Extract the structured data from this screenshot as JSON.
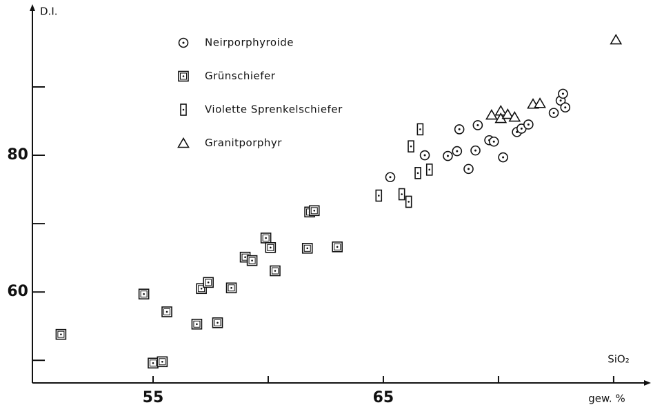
{
  "chart_data": {
    "type": "scatter",
    "y_label": "D.I.",
    "x_label": "SiO₂",
    "x_unit": "gew. %",
    "xlim": [
      49.76,
      76.5
    ],
    "ylim": [
      46.7,
      101.2
    ],
    "xticks": [
      55,
      65
    ],
    "xminorticks": [
      60,
      70,
      75
    ],
    "yticks": [
      60,
      80
    ],
    "yminorticks": [
      50,
      70,
      90
    ],
    "legend": "upper-left",
    "series": [
      {
        "name": "Neirporphyroide",
        "marker": "circle-dot",
        "color": "#111111",
        "x": [
          65.3,
          66.8,
          67.8,
          68.2,
          68.3,
          68.7,
          69.0,
          69.1,
          69.6,
          69.8,
          70.2,
          70.8,
          71.0,
          71.3,
          72.4,
          72.7,
          72.8,
          72.9
        ],
        "values": [
          76.8,
          80.0,
          79.9,
          80.6,
          83.8,
          78.0,
          80.7,
          84.4,
          82.2,
          82.0,
          79.7,
          83.4,
          83.9,
          84.5,
          86.2,
          88.0,
          89.0,
          87.0
        ]
      },
      {
        "name": "Grünschiefer",
        "marker": "square-dot",
        "color": "#111111",
        "x": [
          51.0,
          54.6,
          55.6,
          55.0,
          55.4,
          56.9,
          57.8,
          57.1,
          57.4,
          58.4,
          59.0,
          59.3,
          59.9,
          60.1,
          60.3,
          61.7,
          61.8,
          62.0,
          63.0
        ],
        "values": [
          53.8,
          59.7,
          57.1,
          49.6,
          49.8,
          55.3,
          55.5,
          60.5,
          61.4,
          60.6,
          65.1,
          64.6,
          67.9,
          66.5,
          63.1,
          66.4,
          71.7,
          71.9,
          66.6
        ]
      },
      {
        "name": "Violette Sprenkelschiefer",
        "marker": "rect-dot",
        "color": "#111111",
        "x": [
          64.8,
          65.8,
          66.1,
          66.2,
          66.6,
          66.5,
          67.0
        ],
        "values": [
          74.1,
          74.3,
          73.2,
          81.3,
          83.8,
          77.4,
          77.9
        ]
      },
      {
        "name": "Granitporphyr",
        "marker": "triangle",
        "color": "#111111",
        "x": [
          69.7,
          70.1,
          70.1,
          70.4,
          70.7,
          71.5,
          71.8,
          75.1
        ],
        "values": [
          85.9,
          86.5,
          85.4,
          86.0,
          85.6,
          87.5,
          87.6,
          96.9
        ]
      }
    ]
  }
}
